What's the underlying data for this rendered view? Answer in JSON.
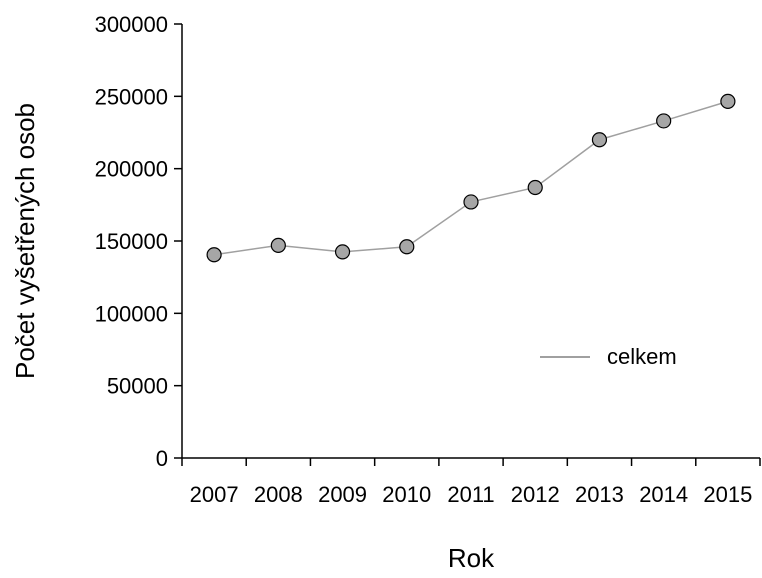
{
  "chart_data": {
    "type": "line",
    "categories": [
      "2007",
      "2008",
      "2009",
      "2010",
      "2011",
      "2012",
      "2013",
      "2014",
      "2015"
    ],
    "series": [
      {
        "name": "celkem",
        "values": [
          140500,
          147000,
          142500,
          146000,
          177000,
          187000,
          220000,
          233000,
          246500
        ],
        "line_color": "#a0a0a0",
        "marker_fill": "#a6a6a6",
        "marker_edge": "#000000"
      }
    ],
    "xlabel": "Rok",
    "ylabel": "Počet vyšetřených osob",
    "ylim": [
      0,
      300000
    ],
    "yticks": [
      0,
      50000,
      100000,
      150000,
      200000,
      250000,
      300000
    ],
    "ytick_labels": [
      "0",
      "50000",
      "100000",
      "150000",
      "200000",
      "250000",
      "300000"
    ],
    "grid": false,
    "legend": {
      "position": "inside-right",
      "entries": [
        "celkem"
      ]
    }
  }
}
